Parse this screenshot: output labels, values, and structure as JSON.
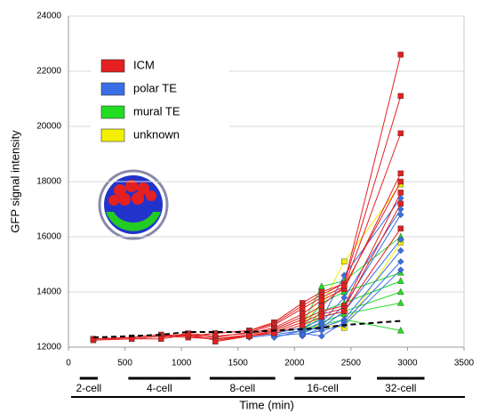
{
  "chart_data": {
    "type": "line",
    "y_label": "GFP signal intensity",
    "x_label": "Time (min)",
    "xlim": [
      0,
      3500
    ],
    "xticks": [
      0,
      500,
      1000,
      1500,
      2000,
      2500,
      3000,
      3500
    ],
    "ylim": [
      12000,
      24000
    ],
    "yticks": [
      12000,
      14000,
      16000,
      18000,
      20000,
      22000,
      24000
    ],
    "grid": true,
    "x": [
      220,
      560,
      820,
      1060,
      1300,
      1600,
      1820,
      2070,
      2240,
      2440,
      2940
    ],
    "groups": [
      {
        "name": "ICM",
        "color": "#e42020",
        "marker": "square",
        "lines": [
          [
            12300,
            12350,
            12450,
            12400,
            12500,
            12600,
            12900,
            13600,
            14000,
            14300,
            22600
          ],
          [
            12300,
            12350,
            12450,
            12400,
            12500,
            12600,
            12850,
            13500,
            13900,
            14300,
            21100
          ],
          [
            null,
            12300,
            12400,
            12450,
            12350,
            12550,
            12800,
            13400,
            13800,
            14200,
            19750
          ],
          [
            null,
            null,
            12350,
            12500,
            12400,
            12500,
            12700,
            13200,
            13700,
            14100,
            18300
          ],
          [
            12250,
            12300,
            12400,
            12350,
            12300,
            12450,
            12650,
            13100,
            13500,
            14200,
            18000
          ],
          [
            null,
            null,
            null,
            12400,
            12300,
            12400,
            12600,
            13000,
            13300,
            13500,
            17600
          ],
          [
            12300,
            12300,
            12300,
            12450,
            12250,
            12400,
            12550,
            12900,
            13200,
            13400,
            17200
          ],
          [
            null,
            null,
            null,
            null,
            12200,
            12400,
            12500,
            12800,
            13100,
            13300,
            16300
          ]
        ]
      },
      {
        "name": "polar TE",
        "color": "#3a6ee6",
        "marker": "diamond",
        "lines": [
          [
            null,
            null,
            null,
            null,
            12300,
            12400,
            12500,
            12700,
            13000,
            14600,
            17400
          ],
          [
            null,
            null,
            null,
            null,
            null,
            12350,
            12450,
            12600,
            12900,
            13800,
            17000
          ],
          [
            null,
            null,
            null,
            null,
            null,
            null,
            12400,
            12500,
            12800,
            13500,
            16800
          ],
          [
            null,
            null,
            null,
            null,
            null,
            null,
            12350,
            12600,
            12700,
            13300,
            15900
          ],
          [
            null,
            null,
            null,
            null,
            null,
            null,
            null,
            12400,
            12700,
            13000,
            15500
          ],
          [
            null,
            null,
            null,
            null,
            null,
            null,
            null,
            12500,
            12400,
            12900,
            15100
          ],
          [
            null,
            null,
            null,
            null,
            null,
            null,
            null,
            12450,
            12600,
            12800,
            14800
          ]
        ]
      },
      {
        "name": "mural TE",
        "color": "#22dd22",
        "marker": "triangle",
        "lines": [
          [
            null,
            null,
            null,
            null,
            null,
            null,
            null,
            12800,
            14200,
            14400,
            16000
          ],
          [
            null,
            null,
            null,
            null,
            null,
            null,
            null,
            12700,
            13600,
            14000,
            14700
          ],
          [
            null,
            null,
            null,
            null,
            null,
            null,
            null,
            12600,
            13300,
            13600,
            14400
          ],
          [
            null,
            null,
            null,
            null,
            null,
            null,
            null,
            12600,
            13100,
            13300,
            14000
          ],
          [
            null,
            null,
            null,
            null,
            null,
            null,
            null,
            12500,
            12900,
            13200,
            13600
          ],
          [
            null,
            null,
            null,
            null,
            null,
            null,
            null,
            12500,
            12800,
            13000,
            12600
          ]
        ]
      },
      {
        "name": "unknown",
        "color": "#f2f000",
        "marker": "square",
        "lines": [
          [
            null,
            null,
            null,
            null,
            null,
            null,
            null,
            12900,
            13500,
            15100,
            17900
          ],
          [
            null,
            null,
            null,
            null,
            null,
            null,
            null,
            12600,
            12800,
            12700,
            15800
          ]
        ]
      }
    ],
    "reference_line": {
      "color": "#000000",
      "values": [
        12350,
        12400,
        12450,
        12550,
        12550,
        12550,
        12600,
        12650,
        12700,
        12800,
        12950
      ]
    },
    "stages": [
      {
        "label": "2-cell",
        "range": [
          100,
          260
        ]
      },
      {
        "label": "4-cell",
        "range": [
          530,
          1080
        ]
      },
      {
        "label": "8-cell",
        "range": [
          1250,
          1830
        ]
      },
      {
        "label": "16-cell",
        "range": [
          2000,
          2500
        ]
      },
      {
        "label": "32-cell",
        "range": [
          2730,
          3150
        ]
      }
    ]
  }
}
